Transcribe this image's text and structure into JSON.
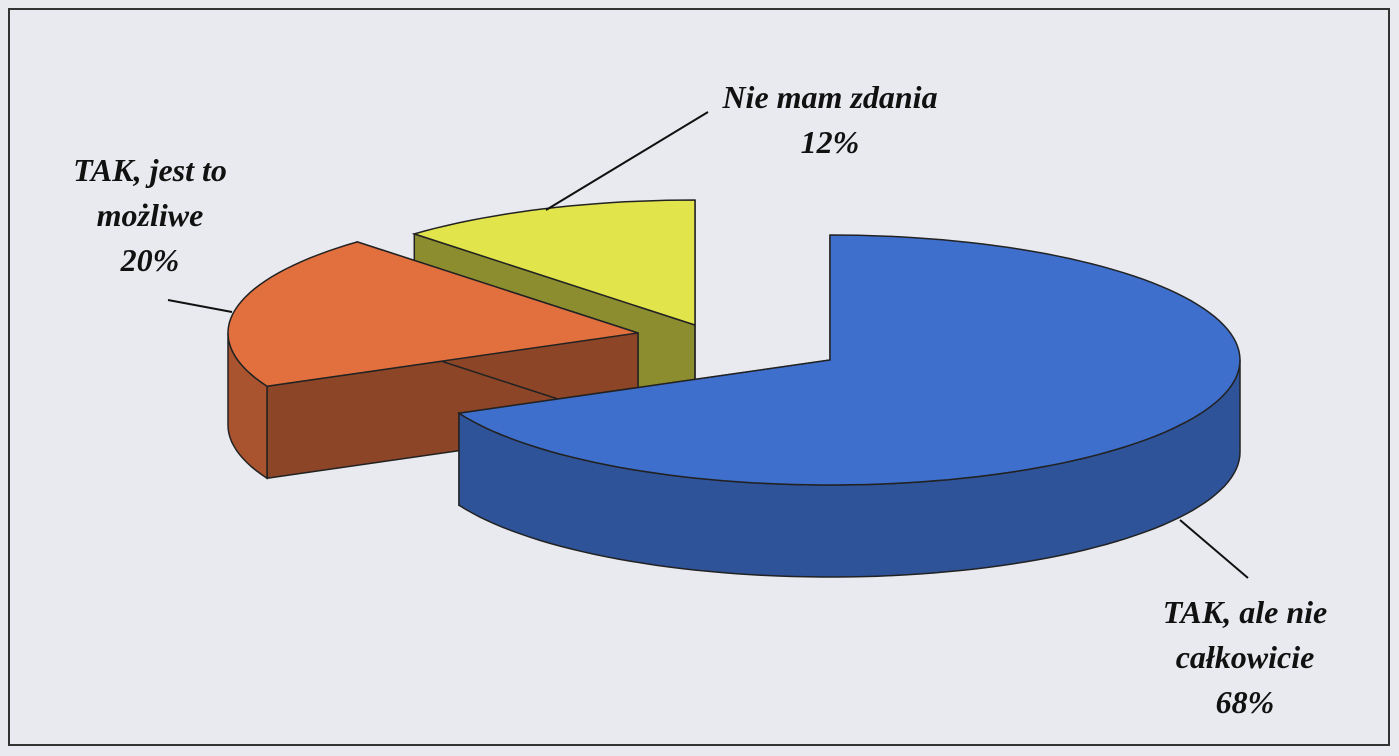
{
  "chart_data": {
    "type": "pie3d",
    "categories": [
      "TAK, ale nie całkowicie",
      "TAK, jest to możliwe",
      "Nie mam zdania"
    ],
    "values": [
      68,
      20,
      12
    ],
    "value_labels": [
      "68%",
      "20%",
      "12%"
    ],
    "colors": [
      "#3e6fcc",
      "#e2703f",
      "#e2e44c"
    ]
  }
}
